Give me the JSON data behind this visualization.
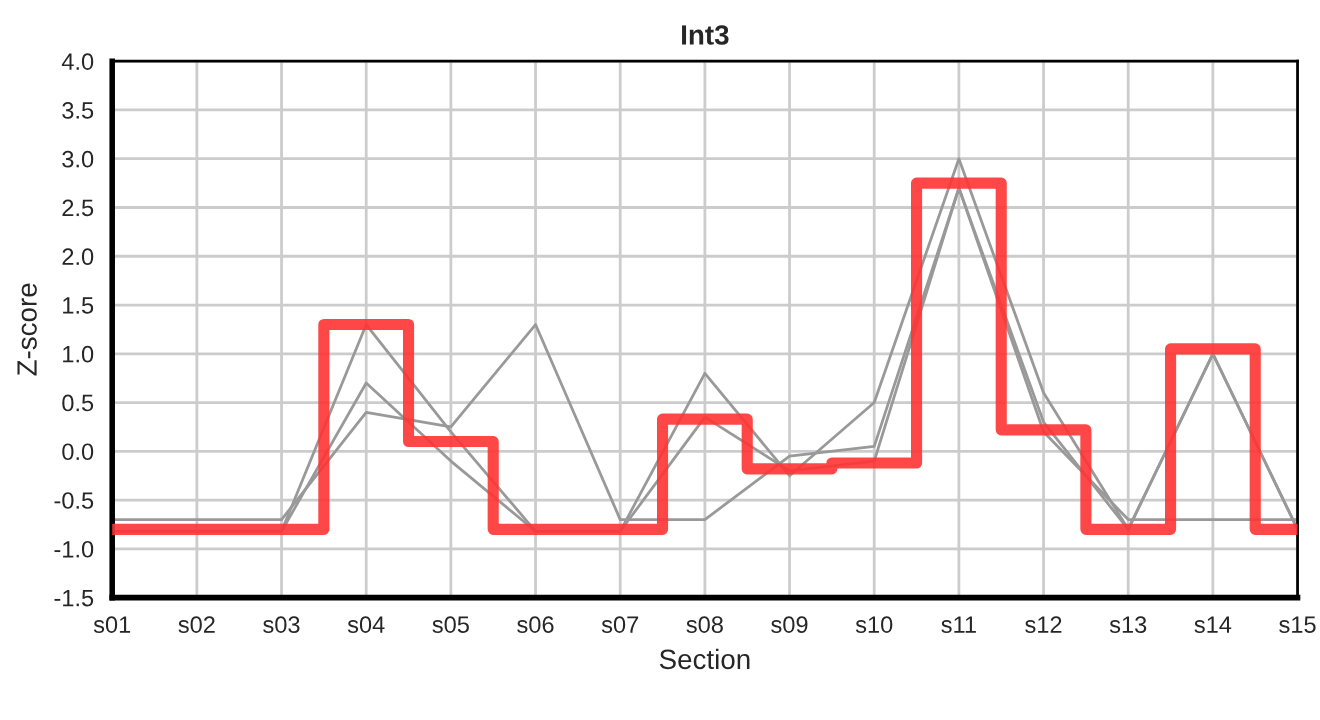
{
  "chart_data": {
    "type": "line",
    "title": "Int3",
    "xlabel": "Section",
    "ylabel": "Z-score",
    "categories": [
      "s01",
      "s02",
      "s03",
      "s04",
      "s05",
      "s06",
      "s07",
      "s08",
      "s09",
      "s10",
      "s11",
      "s12",
      "s13",
      "s14",
      "s15"
    ],
    "series": [
      {
        "color": "#999999",
        "values": [
          -0.7,
          -0.7,
          -0.7,
          0.4,
          0.25,
          1.3,
          -0.7,
          -0.7,
          -0.05,
          0.05,
          2.7,
          0.2,
          -0.7,
          -0.7,
          -0.7
        ]
      },
      {
        "color": "#999999",
        "values": [
          -0.82,
          -0.82,
          -0.82,
          1.3,
          0.2,
          -0.82,
          -0.82,
          0.8,
          -0.25,
          0.5,
          3.0,
          0.6,
          -0.8,
          1.0,
          -0.8
        ]
      },
      {
        "color": "#999999",
        "values": [
          -0.82,
          -0.82,
          -0.82,
          0.7,
          -0.1,
          -0.82,
          -0.82,
          0.35,
          -0.2,
          -0.1,
          2.7,
          0.3,
          -0.8,
          1.0,
          -0.8
        ]
      },
      {
        "type": "step",
        "color": "#ff3333",
        "values": [
          -0.8,
          -0.8,
          -0.8,
          1.3,
          0.1,
          -0.8,
          -0.8,
          0.33,
          -0.18,
          -0.12,
          2.75,
          0.22,
          -0.8,
          1.05,
          -0.8
        ]
      }
    ],
    "ylim": [
      -1.5,
      4.0
    ],
    "yticks": [
      {
        "value": -1.5,
        "label": "-1.5"
      },
      {
        "value": -1.0,
        "label": "-1.0"
      },
      {
        "value": -0.5,
        "label": "-0.5"
      },
      {
        "value": 0.0,
        "label": "0.0"
      },
      {
        "value": 0.5,
        "label": "0.5"
      },
      {
        "value": 1.0,
        "label": "1.0"
      },
      {
        "value": 1.5,
        "label": "1.5"
      },
      {
        "value": 2.0,
        "label": "2.0"
      },
      {
        "value": 2.5,
        "label": "2.5"
      },
      {
        "value": 3.0,
        "label": "3.0"
      },
      {
        "value": 3.5,
        "label": "3.5"
      },
      {
        "value": 4.0,
        "label": "4.0"
      }
    ],
    "grid": true
  }
}
